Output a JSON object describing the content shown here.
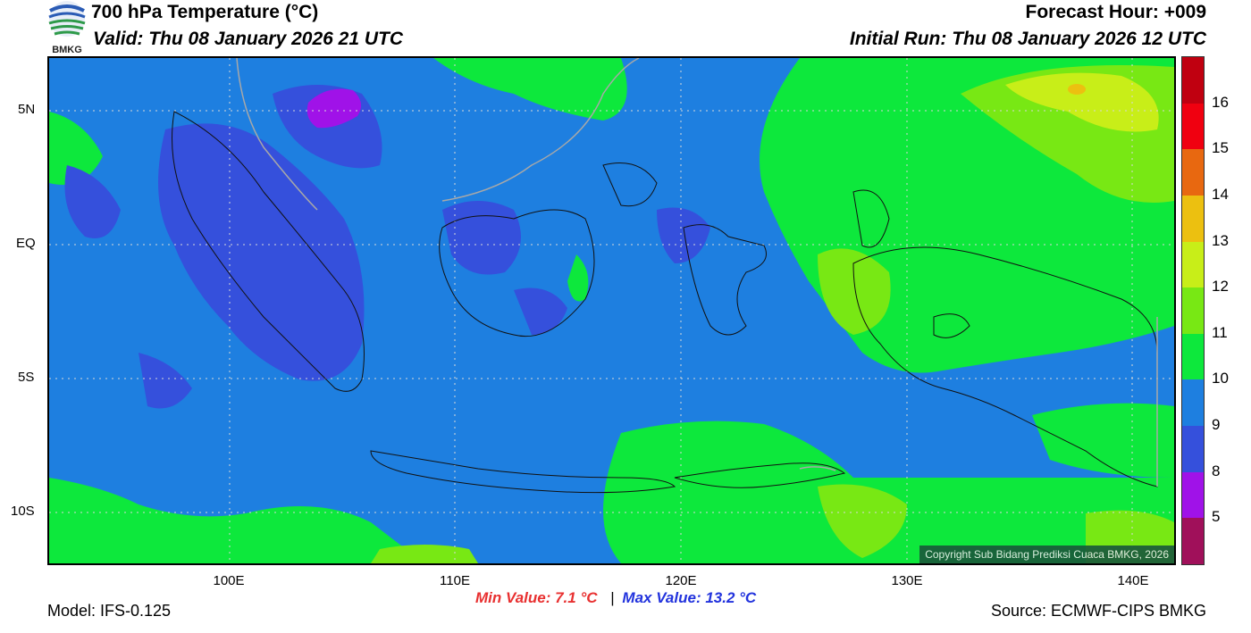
{
  "header": {
    "title": "700 hPa Temperature (°C)",
    "valid": "Valid: Thu 08 January 2026 21 UTC",
    "forecast_hour": "Forecast Hour: +009",
    "initial_run": "Initial Run: Thu 08 January 2026 12 UTC",
    "logo_text": "BMKG"
  },
  "map": {
    "lat_labels": [
      "5N",
      "EQ",
      "5S",
      "10S"
    ],
    "lon_labels": [
      "100E",
      "110E",
      "120E",
      "130E",
      "140E"
    ],
    "copyright": "Copyright Sub Bidang Prediksi Cuaca BMKG, 2026",
    "colors": {
      "c9": "#1e7fe0",
      "c8": "#3550dc",
      "c10": "#0de83c",
      "c11": "#78e814",
      "c12": "#c8ee18",
      "c13": "#ecc010",
      "c5": "#a012e8"
    }
  },
  "colorbar": {
    "segments": [
      {
        "color": "#c00010"
      },
      {
        "color": "#f00010"
      },
      {
        "color": "#e86810"
      },
      {
        "color": "#ecc010"
      },
      {
        "color": "#c8ee18"
      },
      {
        "color": "#78e814"
      },
      {
        "color": "#0de83c"
      },
      {
        "color": "#1e7fe0"
      },
      {
        "color": "#3550dc"
      },
      {
        "color": "#a012e8"
      },
      {
        "color": "#a0105a"
      }
    ],
    "labels": [
      "16",
      "15",
      "14",
      "13",
      "12",
      "11",
      "10",
      "9",
      "8",
      "5"
    ]
  },
  "footer": {
    "model": "Model: IFS-0.125",
    "min_value": "Min Value: 7.1 °C",
    "separator": "|",
    "max_value": "Max Value: 13.2 °C",
    "source": "Source: ECMWF-CIPS BMKG"
  }
}
